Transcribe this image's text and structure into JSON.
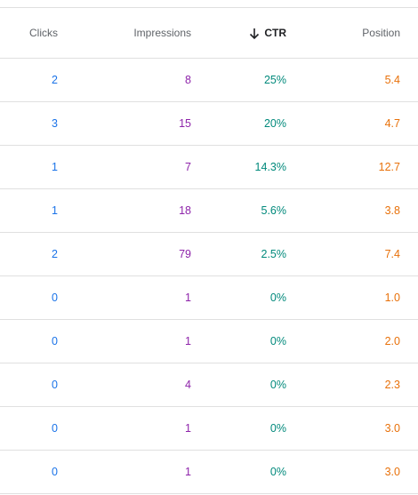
{
  "table": {
    "header": [
      "Clicks",
      "Impressions",
      "CTR",
      "Position"
    ],
    "rows": [
      [
        "2",
        "8",
        "25%",
        "5.4"
      ],
      [
        "3",
        "15",
        "20%",
        "4.7"
      ],
      [
        "1",
        "7",
        "14.3%",
        "12.7"
      ],
      [
        "1",
        "18",
        "5.6%",
        "3.8"
      ],
      [
        "2",
        "79",
        "2.5%",
        "7.4"
      ],
      [
        "0",
        "1",
        "0%",
        "1.0"
      ],
      [
        "0",
        "1",
        "0%",
        "2.0"
      ],
      [
        "0",
        "4",
        "0%",
        "2.3"
      ],
      [
        "0",
        "1",
        "0%",
        "3.0"
      ],
      [
        "0",
        "1",
        "0%",
        "3.0"
      ]
    ]
  }
}
